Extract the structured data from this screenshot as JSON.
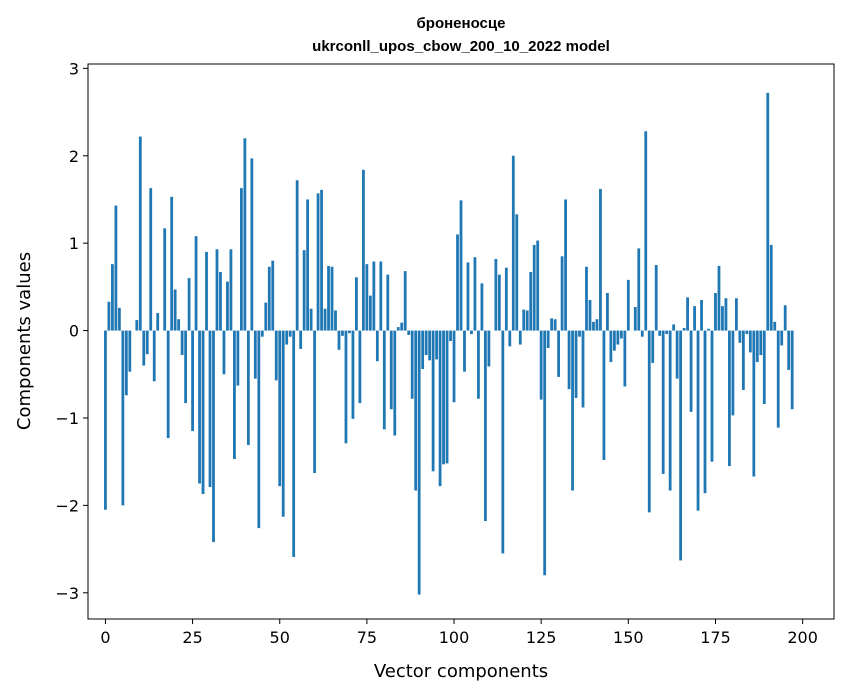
{
  "chart_data": {
    "type": "bar",
    "title": "броненосце",
    "subtitle": "ukrconll_upos_cbow_200_10_2022 model",
    "xlabel": "Vector components",
    "ylabel": "Components values",
    "xlim": [
      -5,
      209
    ],
    "ylim": [
      -3.3,
      3.05
    ],
    "xticks": [
      0,
      25,
      50,
      75,
      100,
      125,
      150,
      175,
      200
    ],
    "yticks": [
      -3,
      -2,
      -1,
      0,
      1,
      2,
      3
    ],
    "xtick_labels": [
      "0",
      "25",
      "50",
      "75",
      "100",
      "125",
      "150",
      "175",
      "200"
    ],
    "ytick_labels": [
      "−3",
      "−2",
      "−1",
      "0",
      "1",
      "2",
      "3"
    ],
    "bar_color": "#1f77b4",
    "grid": false,
    "values": [
      -2.05,
      0.33,
      0.76,
      1.43,
      0.26,
      -2.0,
      -0.74,
      -0.47,
      0.0,
      0.12,
      2.22,
      -0.4,
      -0.27,
      1.63,
      -0.58,
      0.2,
      0.0,
      1.17,
      -1.23,
      1.53,
      0.47,
      0.13,
      -0.28,
      -0.83,
      0.6,
      -1.15,
      1.08,
      -1.75,
      -1.87,
      0.9,
      -1.79,
      -2.42,
      0.93,
      0.67,
      -0.5,
      0.56,
      0.93,
      -1.47,
      -0.63,
      1.63,
      2.2,
      -1.31,
      1.97,
      -0.55,
      -2.26,
      -0.07,
      0.32,
      0.73,
      0.8,
      -0.57,
      -1.78,
      -2.13,
      -0.16,
      -0.07,
      -2.59,
      1.72,
      -0.21,
      0.92,
      1.5,
      0.25,
      -1.63,
      1.57,
      1.61,
      0.25,
      0.74,
      0.73,
      0.23,
      -0.22,
      -0.06,
      -1.29,
      -0.03,
      -1.01,
      0.61,
      -0.83,
      1.84,
      0.76,
      0.4,
      0.79,
      -0.35,
      0.79,
      -1.13,
      0.64,
      -0.9,
      -1.2,
      0.04,
      0.09,
      0.68,
      -0.05,
      -0.78,
      -1.83,
      -3.02,
      -0.44,
      -0.28,
      -0.34,
      -1.61,
      -0.33,
      -1.78,
      -1.53,
      -1.52,
      -0.12,
      -0.82,
      1.1,
      1.49,
      -0.47,
      0.78,
      -0.04,
      0.84,
      -0.78,
      0.54,
      -2.18,
      -0.41,
      0.0,
      0.82,
      0.64,
      -2.55,
      0.72,
      -0.18,
      2.0,
      1.33,
      -0.16,
      0.24,
      0.23,
      0.67,
      0.98,
      1.03,
      -0.79,
      -2.8,
      -0.2,
      0.14,
      0.13,
      -0.53,
      0.85,
      1.5,
      -0.67,
      -1.83,
      -0.77,
      -0.07,
      -0.88,
      0.73,
      0.35,
      0.1,
      0.13,
      1.62,
      -1.48,
      0.43,
      -0.36,
      -0.23,
      -0.16,
      -0.09,
      -0.64,
      0.58,
      0.0,
      0.27,
      0.94,
      -0.07,
      2.28,
      -2.08,
      -0.37,
      0.75,
      -0.06,
      -1.64,
      -0.04,
      -1.83,
      0.07,
      -0.55,
      -2.63,
      0.03,
      0.38,
      -0.93,
      0.28,
      -2.06,
      0.35,
      -1.86,
      0.02,
      -1.5,
      0.43,
      0.74,
      0.28,
      0.37,
      -1.55,
      -0.97,
      0.37,
      -0.14,
      -0.68,
      -0.04,
      -0.25,
      -1.67,
      -0.36,
      -0.28,
      -0.84,
      2.72,
      0.98,
      0.1,
      -1.11,
      -0.17,
      0.29,
      -0.45,
      -0.9
    ]
  }
}
